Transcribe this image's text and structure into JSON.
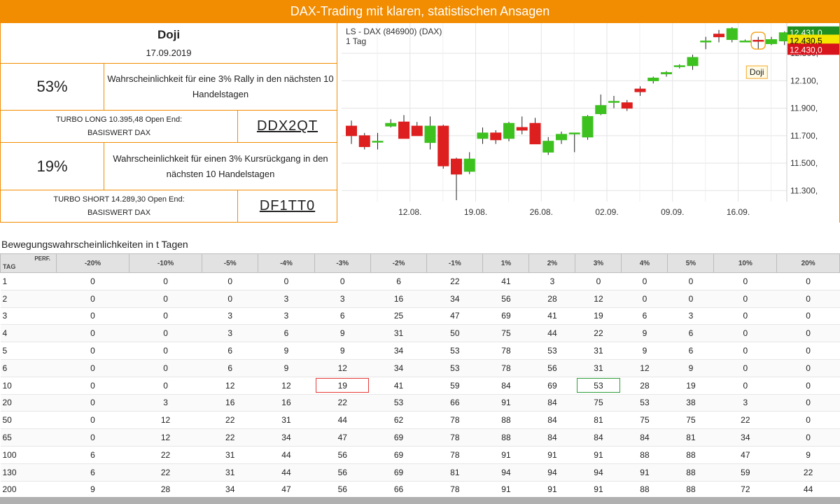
{
  "banner": {
    "title": "DAX-Trading mit klaren, statistischen Ansagen"
  },
  "signal": {
    "name": "Doji",
    "date": "17.09.2019"
  },
  "long": {
    "probability": "53%",
    "description": "Wahrscheinlichkeit für eine 3% Rally in den nächsten 10 Handelstagen",
    "product": "TURBO LONG 10.395,48 Open End: BASISWERT DAX",
    "wkn": "DDX2QT"
  },
  "short": {
    "probability": "19%",
    "description": "Wahrscheinlichkeit für einen 3% Kursrückgang in den nächsten 10 Handelstagen",
    "product": "TURBO SHORT 14.289,30 Open End: BASISWERT DAX",
    "wkn": "DF1TT0"
  },
  "chart_data": {
    "type": "candlestick",
    "title": "LS - DAX (846900) (DAX)",
    "subtitle": "1 Tag",
    "ylim": [
      11220,
      12520
    ],
    "yticks": [
      11300,
      11500,
      11700,
      11900,
      12100,
      12300
    ],
    "ytick_labels": [
      "11.300,",
      "11.500,",
      "11.700,",
      "11.900,",
      "12.100,",
      "12.300,"
    ],
    "xtick_labels": [
      {
        "label": "12.08.",
        "index": 5
      },
      {
        "label": "19.08.",
        "index": 10
      },
      {
        "label": "26.08.",
        "index": 15
      },
      {
        "label": "02.09.",
        "index": 20
      },
      {
        "label": "09.09.",
        "index": 25
      },
      {
        "label": "16.09.",
        "index": 30
      }
    ],
    "price_labels": [
      {
        "text": "12.431,0",
        "value": 12455,
        "color": "#1f8f1f",
        "text_color": "#ffffff"
      },
      {
        "text": "12.430,5",
        "value": 12395,
        "color": "#f5e600",
        "text_color": "#000000"
      },
      {
        "text": "12.430,0",
        "value": 12330,
        "color": "#d8141c",
        "text_color": "#ffffff"
      }
    ],
    "annotation": {
      "text": "Doji",
      "index": 31
    },
    "candles": [
      {
        "o": 11770,
        "h": 11810,
        "l": 11640,
        "c": 11700
      },
      {
        "o": 11700,
        "h": 11720,
        "l": 11600,
        "c": 11620
      },
      {
        "o": 11660,
        "h": 11720,
        "l": 11600,
        "c": 11660
      },
      {
        "o": 11770,
        "h": 11820,
        "l": 11760,
        "c": 11790
      },
      {
        "o": 11800,
        "h": 11850,
        "l": 11680,
        "c": 11680
      },
      {
        "o": 11770,
        "h": 11800,
        "l": 11700,
        "c": 11700
      },
      {
        "o": 11650,
        "h": 11840,
        "l": 11600,
        "c": 11770
      },
      {
        "o": 11770,
        "h": 11780,
        "l": 11460,
        "c": 11480
      },
      {
        "o": 11530,
        "h": 11540,
        "l": 11230,
        "c": 11420
      },
      {
        "o": 11440,
        "h": 11580,
        "l": 11420,
        "c": 11530
      },
      {
        "o": 11680,
        "h": 11760,
        "l": 11640,
        "c": 11720
      },
      {
        "o": 11720,
        "h": 11740,
        "l": 11640,
        "c": 11670
      },
      {
        "o": 11680,
        "h": 11800,
        "l": 11660,
        "c": 11790
      },
      {
        "o": 11760,
        "h": 11840,
        "l": 11710,
        "c": 11740
      },
      {
        "o": 11790,
        "h": 11830,
        "l": 11640,
        "c": 11640
      },
      {
        "o": 11580,
        "h": 11690,
        "l": 11560,
        "c": 11660
      },
      {
        "o": 11670,
        "h": 11730,
        "l": 11640,
        "c": 11710
      },
      {
        "o": 11720,
        "h": 11720,
        "l": 11580,
        "c": 11720
      },
      {
        "o": 11690,
        "h": 11850,
        "l": 11670,
        "c": 11840
      },
      {
        "o": 11860,
        "h": 12000,
        "l": 11850,
        "c": 11920
      },
      {
        "o": 11950,
        "h": 11990,
        "l": 11900,
        "c": 11950
      },
      {
        "o": 11940,
        "h": 11960,
        "l": 11880,
        "c": 11900
      },
      {
        "o": 12040,
        "h": 12060,
        "l": 11990,
        "c": 12020
      },
      {
        "o": 12100,
        "h": 12130,
        "l": 12080,
        "c": 12120
      },
      {
        "o": 12150,
        "h": 12170,
        "l": 12130,
        "c": 12160
      },
      {
        "o": 12210,
        "h": 12220,
        "l": 12190,
        "c": 12210
      },
      {
        "o": 12210,
        "h": 12290,
        "l": 12180,
        "c": 12270
      },
      {
        "o": 12390,
        "h": 12420,
        "l": 12330,
        "c": 12390
      },
      {
        "o": 12440,
        "h": 12470,
        "l": 12380,
        "c": 12420
      },
      {
        "o": 12400,
        "h": 12490,
        "l": 12380,
        "c": 12480
      },
      {
        "o": 12390,
        "h": 12400,
        "l": 12380,
        "c": 12390
      },
      {
        "o": 12395,
        "h": 12420,
        "l": 12330,
        "c": 12392
      },
      {
        "o": 12370,
        "h": 12420,
        "l": 12360,
        "c": 12400
      },
      {
        "o": 12390,
        "h": 12460,
        "l": 12360,
        "c": 12450
      }
    ]
  },
  "table": {
    "section_title": "Bewegungswahrscheinlichkeiten in t Tagen",
    "corner_perf": "PERF.",
    "corner_tag": "TAG",
    "headers": [
      "-20%",
      "-10%",
      "-5%",
      "-4%",
      "-3%",
      "-2%",
      "-1%",
      "1%",
      "2%",
      "3%",
      "4%",
      "5%",
      "10%",
      "20%"
    ],
    "rows": [
      {
        "day": "1",
        "values": [
          "0",
          "0",
          "0",
          "0",
          "0",
          "6",
          "22",
          "41",
          "3",
          "0",
          "0",
          "0",
          "0",
          "0"
        ]
      },
      {
        "day": "2",
        "values": [
          "0",
          "0",
          "0",
          "3",
          "3",
          "16",
          "34",
          "56",
          "28",
          "12",
          "0",
          "0",
          "0",
          "0"
        ]
      },
      {
        "day": "3",
        "values": [
          "0",
          "0",
          "3",
          "3",
          "6",
          "25",
          "47",
          "69",
          "41",
          "19",
          "6",
          "3",
          "0",
          "0"
        ]
      },
      {
        "day": "4",
        "values": [
          "0",
          "0",
          "3",
          "6",
          "9",
          "31",
          "50",
          "75",
          "44",
          "22",
          "9",
          "6",
          "0",
          "0"
        ]
      },
      {
        "day": "5",
        "values": [
          "0",
          "0",
          "6",
          "9",
          "9",
          "34",
          "53",
          "78",
          "53",
          "31",
          "9",
          "6",
          "0",
          "0"
        ]
      },
      {
        "day": "6",
        "values": [
          "0",
          "0",
          "6",
          "9",
          "12",
          "34",
          "53",
          "78",
          "56",
          "31",
          "12",
          "9",
          "0",
          "0"
        ]
      },
      {
        "day": "10",
        "values": [
          "0",
          "0",
          "12",
          "12",
          "19",
          "41",
          "59",
          "84",
          "69",
          "53",
          "28",
          "19",
          "0",
          "0"
        ]
      },
      {
        "day": "20",
        "values": [
          "0",
          "3",
          "16",
          "16",
          "22",
          "53",
          "66",
          "91",
          "84",
          "75",
          "53",
          "38",
          "3",
          "0"
        ]
      },
      {
        "day": "50",
        "values": [
          "0",
          "12",
          "22",
          "31",
          "44",
          "62",
          "78",
          "88",
          "84",
          "81",
          "75",
          "75",
          "22",
          "0"
        ]
      },
      {
        "day": "65",
        "values": [
          "0",
          "12",
          "22",
          "34",
          "47",
          "69",
          "78",
          "88",
          "84",
          "84",
          "84",
          "81",
          "34",
          "0"
        ]
      },
      {
        "day": "100",
        "values": [
          "6",
          "22",
          "31",
          "44",
          "56",
          "69",
          "78",
          "91",
          "91",
          "91",
          "88",
          "88",
          "47",
          "9"
        ]
      },
      {
        "day": "130",
        "values": [
          "6",
          "22",
          "31",
          "44",
          "56",
          "69",
          "81",
          "94",
          "94",
          "94",
          "91",
          "88",
          "59",
          "22"
        ]
      },
      {
        "day": "200",
        "values": [
          "9",
          "28",
          "34",
          "47",
          "56",
          "66",
          "78",
          "91",
          "91",
          "91",
          "88",
          "88",
          "72",
          "44"
        ]
      }
    ],
    "highlights": [
      {
        "row": 6,
        "col": 4,
        "color": "#e53935"
      },
      {
        "row": 6,
        "col": 9,
        "color": "#2e9e3b"
      }
    ]
  }
}
